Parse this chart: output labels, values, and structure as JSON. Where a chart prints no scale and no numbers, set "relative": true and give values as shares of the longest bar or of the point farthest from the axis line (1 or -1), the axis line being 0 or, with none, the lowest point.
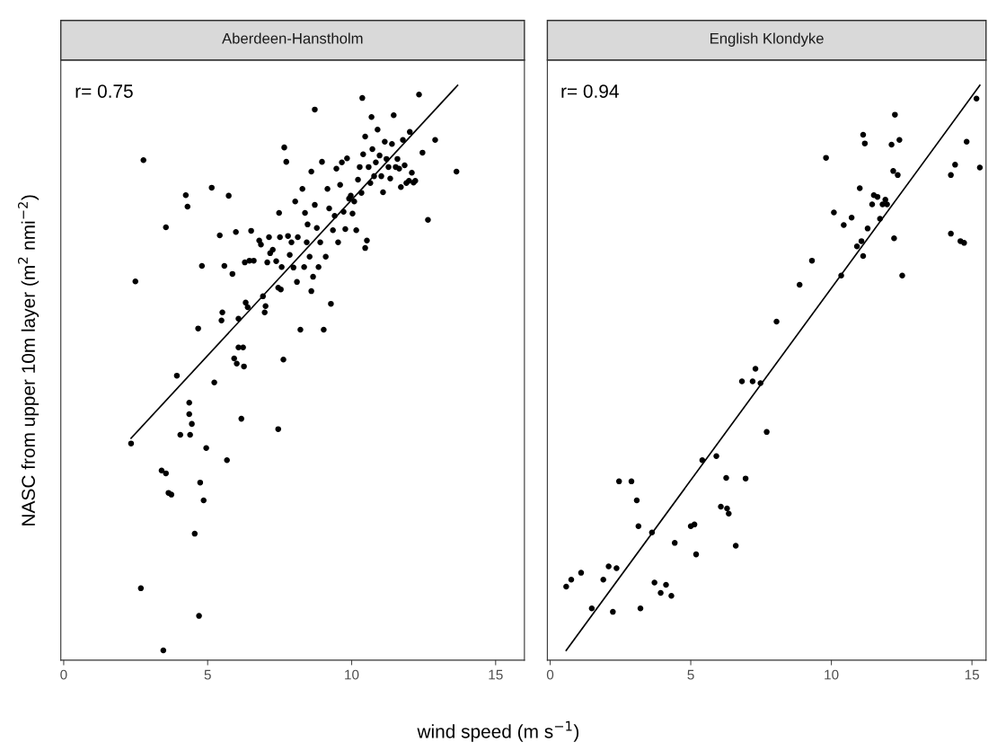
{
  "chart_data": [
    {
      "type": "scatter",
      "title": "Aberdeen-Hanstholm",
      "relative": true,
      "xlim": [
        -0.1,
        16.0
      ],
      "xticks": [
        0,
        5,
        10,
        15
      ],
      "tick_labels": "x",
      "grid": false,
      "xlabel": "wind speed (m s$^{−1}$)",
      "ylabel": "NASC from upper 10m layer (m$^{2}$ nmi$^{−2}$)",
      "annotations": [
        "r= 0.75"
      ],
      "series": [
        {
          "marker": "circle",
          "color": "#000000",
          "x": [
            2.34,
            2.49,
            2.68,
            2.77,
            3.4,
            3.55,
            3.55,
            3.64,
            3.74,
            3.46,
            3.93,
            4.05,
            4.24,
            4.3,
            4.36,
            4.36,
            4.39,
            4.45,
            4.55,
            4.7,
            4.67,
            4.74,
            4.8,
            4.86,
            4.95,
            5.14,
            5.23,
            5.42,
            5.48,
            5.51,
            5.58,
            5.67,
            5.73,
            5.86,
            5.92,
            5.98,
            6.01,
            6.07,
            6.07,
            6.17,
            6.23,
            6.26,
            6.29,
            6.32,
            6.39,
            6.45,
            6.51,
            6.6,
            6.79,
            6.85,
            6.92,
            6.98,
            7.01,
            7.07,
            7.13,
            7.17,
            7.26,
            7.38,
            7.45,
            7.45,
            7.48,
            7.51,
            7.54,
            7.57,
            7.63,
            7.66,
            7.73,
            7.79,
            7.85,
            7.91,
            7.98,
            8.04,
            8.1,
            8.13,
            8.22,
            8.29,
            8.35,
            8.38,
            8.44,
            8.47,
            8.54,
            8.6,
            8.6,
            8.66,
            8.72,
            8.72,
            8.79,
            8.85,
            8.91,
            8.97,
            9.03,
            9.1,
            9.16,
            9.22,
            9.28,
            9.35,
            9.41,
            9.47,
            9.53,
            9.6,
            9.66,
            9.72,
            9.78,
            9.84,
            9.91,
            9.97,
            10.03,
            10.09,
            10.16,
            10.22,
            10.28,
            10.34,
            10.4,
            10.47,
            10.47,
            10.53,
            10.59,
            10.65,
            10.69,
            10.72,
            10.78,
            10.84,
            10.9,
            10.97,
            11.03,
            11.09,
            11.15,
            11.21,
            11.28,
            11.34,
            11.4,
            11.46,
            11.53,
            11.59,
            11.65,
            11.71,
            11.78,
            11.84,
            11.9,
            11.99,
            12.02,
            12.09,
            12.15,
            12.21,
            12.34,
            12.46,
            12.65,
            12.9,
            13.64,
            10.37
          ],
          "values": [
            0.377,
            0.659,
            0.125,
            0.87,
            0.33,
            0.325,
            0.753,
            0.291,
            0.288,
            0.017,
            0.495,
            0.392,
            0.809,
            0.789,
            0.448,
            0.428,
            0.392,
            0.411,
            0.22,
            0.077,
            0.577,
            0.309,
            0.686,
            0.278,
            0.369,
            0.822,
            0.483,
            0.739,
            0.591,
            0.605,
            0.686,
            0.348,
            0.808,
            0.672,
            0.525,
            0.745,
            0.516,
            0.594,
            0.544,
            0.42,
            0.544,
            0.511,
            0.692,
            0.622,
            0.614,
            0.695,
            0.747,
            0.695,
            0.73,
            0.723,
            0.633,
            0.605,
            0.616,
            0.692,
            0.736,
            0.708,
            0.714,
            0.694,
            0.402,
            0.648,
            0.778,
            0.736,
            0.645,
            0.684,
            0.523,
            0.892,
            0.867,
            0.738,
            0.705,
            0.727,
            0.683,
            0.798,
            0.658,
            0.736,
            0.575,
            0.82,
            0.684,
            0.778,
            0.727,
            0.758,
            0.702,
            0.85,
            0.642,
            0.667,
            0.792,
            0.958,
            0.752,
            0.684,
            0.727,
            0.867,
            0.575,
            0.702,
            0.82,
            0.786,
            0.62,
            0.748,
            0.773,
            0.855,
            0.727,
            0.827,
            0.866,
            0.78,
            0.75,
            0.873,
            0.803,
            0.808,
            0.777,
            0.798,
            0.748,
            0.836,
            0.858,
            0.813,
            0.88,
            0.911,
            0.717,
            0.73,
            0.858,
            0.83,
            0.945,
            0.889,
            0.842,
            0.866,
            0.923,
            0.878,
            0.842,
            0.814,
            0.902,
            0.872,
            0.858,
            0.838,
            0.898,
            0.948,
            0.858,
            0.872,
            0.855,
            0.823,
            0.905,
            0.861,
            0.83,
            0.834,
            0.919,
            0.848,
            0.831,
            0.834,
            0.984,
            0.883,
            0.766,
            0.905,
            0.85,
            0.978
          ]
        },
        {
          "type": "line",
          "marker": "none",
          "color": "#000000",
          "x": [
            2.34,
            13.68
          ],
          "values": [
            0.386,
            1.0
          ]
        }
      ]
    },
    {
      "type": "scatter",
      "title": "English Klondyke",
      "relative": true,
      "xlim": [
        -0.1,
        15.5
      ],
      "xticks": [
        0,
        5,
        10,
        15
      ],
      "tick_labels": "x",
      "grid": false,
      "annotations": [
        "r= 0.94"
      ],
      "series": [
        {
          "marker": "circle",
          "color": "#000000",
          "x": [
            0.57,
            0.75,
            1.1,
            1.48,
            1.89,
            2.08,
            2.23,
            2.36,
            2.45,
            2.89,
            3.08,
            3.14,
            3.21,
            3.62,
            3.71,
            3.93,
            4.12,
            4.31,
            4.43,
            5.0,
            5.13,
            5.19,
            5.41,
            5.91,
            6.07,
            6.26,
            6.29,
            6.35,
            6.6,
            6.95,
            6.82,
            7.2,
            7.3,
            7.48,
            7.7,
            8.05,
            8.87,
            9.31,
            9.81,
            10.09,
            10.35,
            10.44,
            10.72,
            10.91,
            11.01,
            11.07,
            11.13,
            11.13,
            11.19,
            11.29,
            11.45,
            11.51,
            11.64,
            11.73,
            11.82,
            11.92,
            11.98,
            12.14,
            12.2,
            12.23,
            12.26,
            12.36,
            12.42,
            12.52,
            14.25,
            14.25,
            14.4,
            14.59,
            14.81,
            14.72,
            15.16,
            15.28
          ],
          "values": [
            0.128,
            0.14,
            0.152,
            0.09,
            0.14,
            0.163,
            0.084,
            0.16,
            0.311,
            0.311,
            0.278,
            0.233,
            0.09,
            0.222,
            0.135,
            0.117,
            0.131,
            0.112,
            0.204,
            0.233,
            0.236,
            0.184,
            0.348,
            0.355,
            0.267,
            0.317,
            0.264,
            0.255,
            0.199,
            0.316,
            0.485,
            0.485,
            0.507,
            0.482,
            0.397,
            0.589,
            0.653,
            0.695,
            0.874,
            0.779,
            0.669,
            0.757,
            0.77,
            0.72,
            0.821,
            0.729,
            0.703,
            0.914,
            0.899,
            0.751,
            0.793,
            0.809,
            0.806,
            0.768,
            0.793,
            0.801,
            0.793,
            0.897,
            0.851,
            0.734,
            0.949,
            0.844,
            0.905,
            0.669,
            0.844,
            0.742,
            0.862,
            0.729,
            0.902,
            0.726,
            0.977,
            0.857
          ]
        },
        {
          "type": "line",
          "marker": "none",
          "color": "#000000",
          "x": [
            0.57,
            15.28
          ],
          "values": [
            0.017,
            1.0
          ]
        }
      ]
    }
  ]
}
